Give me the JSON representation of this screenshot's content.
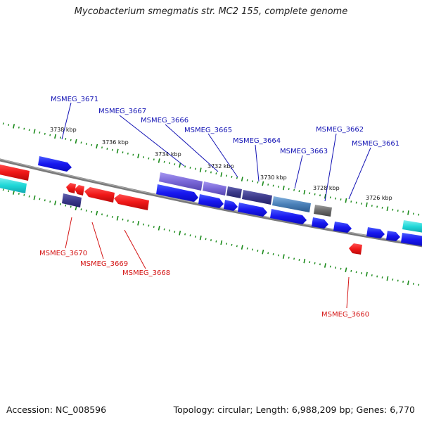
{
  "title": "Mycobacterium smegmatis str. MC2 155, complete genome",
  "footer": {
    "accession": "Accession: NC_008596",
    "summary": "Topology: circular; Length: 6,988,209 bp; Genes: 6,770"
  },
  "ticks": [
    {
      "label": "3738 kbp"
    },
    {
      "label": "3736 kbp"
    },
    {
      "label": "3734 kbp"
    },
    {
      "label": "3732 kbp"
    },
    {
      "label": "3730 kbp"
    },
    {
      "label": "3728 kbp"
    },
    {
      "label": "3726 kbp"
    }
  ],
  "gene_labels_top": [
    {
      "name": "MSMEG_3671"
    },
    {
      "name": "MSMEG_3667"
    },
    {
      "name": "MSMEG_3666"
    },
    {
      "name": "MSMEG_3665"
    },
    {
      "name": "MSMEG_3664"
    },
    {
      "name": "MSMEG_3663"
    },
    {
      "name": "MSMEG_3662"
    },
    {
      "name": "MSMEG_3661"
    }
  ],
  "gene_labels_bottom": [
    {
      "name": "MSMEG_3670"
    },
    {
      "name": "MSMEG_3669"
    },
    {
      "name": "MSMEG_3668"
    },
    {
      "name": "MSMEG_3660"
    }
  ],
  "colors": {
    "forward": "#1a1af0",
    "reverse": "#e81010",
    "cyan": "#18d8d8",
    "purple": "#7b6ad8",
    "dark_purple": "#3c3a8a",
    "steel": "#4a80b8",
    "grey": "#6c6c6c",
    "label_top": "#1212b4",
    "label_bottom": "#d41414",
    "backbone": "#808080",
    "tick_green": "#1a8a1a"
  }
}
